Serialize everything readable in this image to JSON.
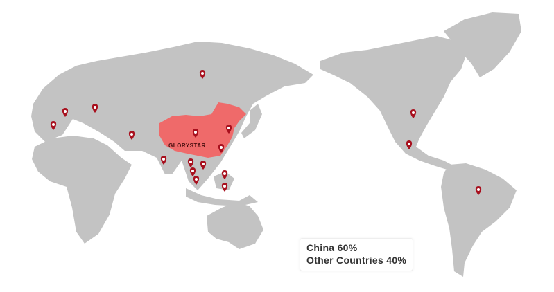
{
  "map": {
    "highlight_country": "China",
    "colors": {
      "land": "#c3c3c3",
      "highlight": "#ef6a6a",
      "pin": "#a8101e"
    },
    "brand_label": "GLORYSTAR",
    "pin_icon": "map-pin-icon",
    "pin_count": 18
  },
  "legend": {
    "line1": "China 60%",
    "line2": "Other Countries 40%"
  }
}
